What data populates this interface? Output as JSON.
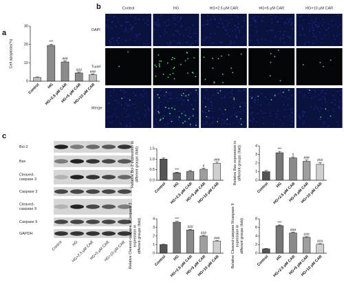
{
  "panel_labels": [
    "a",
    "b",
    "c"
  ],
  "images": {
    "columns": [
      "Control",
      "HG",
      "HG+2.5 μM CAR",
      "HG+5 μM CAR",
      "HG+10 μM CAR"
    ],
    "rows": [
      "DAPI",
      "Tunel",
      "Merge"
    ]
  },
  "blot": {
    "rows": [
      [
        "Bcl-2"
      ],
      [
        "Bax"
      ],
      [
        "Cleaved-",
        "caspase 3"
      ],
      [
        "Caspase 3"
      ],
      [
        "Cleaved-",
        "caspase 9"
      ],
      [
        "Caspase 9"
      ],
      [
        "GAPDH"
      ]
    ],
    "lanes": [
      "Control",
      "HG",
      "HG+2.5 μM CAR",
      "HG+5 μM CAR",
      "HG+10 μM CAR"
    ]
  },
  "chart_data": [
    {
      "type": "bar",
      "y_label": [
        "Cell apoptosis(%)"
      ],
      "categories": [
        "Control",
        "HG",
        "HG+2.5 μM CAR",
        "HG+5 μM CAR",
        "HG+10 μM CAR"
      ],
      "values": [
        2,
        19.5,
        10.5,
        4.5,
        3.5
      ],
      "errors": [
        0.3,
        0.6,
        0.5,
        0.4,
        0.4
      ],
      "annotations": [
        null,
        "***",
        "###",
        "###",
        "###"
      ],
      "colors": [
        "#bdbdbd",
        "#8a8a8a",
        "#8a8a8a",
        "#8a8a8a",
        "#bdbdbd"
      ],
      "ylim": [
        0,
        30
      ],
      "yticks": [
        0,
        10,
        20,
        30
      ]
    },
    {
      "type": "bar",
      "y_label": [
        "Relative Bcl-2 expression in",
        "different groups (fold)"
      ],
      "categories": [
        "Control",
        "HG",
        "HG+2.5 μM CAR",
        "HG+5 μM CAR",
        "HG+10 μM CAR"
      ],
      "values": [
        1.0,
        0.35,
        0.42,
        0.52,
        0.8
      ],
      "errors": [
        0.05,
        0.03,
        0.04,
        0.05,
        0.06
      ],
      "annotations": [
        null,
        "***",
        null,
        "#",
        "###"
      ],
      "colors": [
        "#555555",
        "#777777",
        "#8a8a8a",
        "#9e9e9e",
        "#cfcfcf"
      ],
      "ylim": [
        0,
        1.5
      ],
      "yticks": [
        {
          "value": 0,
          "label": "0.0"
        },
        0.5,
        {
          "value": 1,
          "label": "1.0"
        },
        1.5
      ]
    },
    {
      "type": "bar",
      "y_label": [
        "Relative Bax expression in",
        "different groups (fold)"
      ],
      "categories": [
        "Control",
        "HG",
        "HG+2.5 μM CAR",
        "HG+5 μM CAR",
        "HG+10 μM CAR"
      ],
      "values": [
        1.0,
        3.2,
        2.6,
        2.2,
        1.85
      ],
      "errors": [
        0.15,
        0.15,
        0.12,
        0.15,
        0.2
      ],
      "annotations": [
        null,
        "***",
        "#",
        "###",
        "###"
      ],
      "colors": [
        "#555555",
        "#777777",
        "#8a8a8a",
        "#9e9e9e",
        "#cfcfcf"
      ],
      "ylim": [
        0,
        4
      ],
      "yticks": [
        0,
        1,
        2,
        3,
        4
      ]
    },
    {
      "type": "bar",
      "y_label": [
        "Relative Cleaved-caspase 3/Caspase 3",
        "expression in",
        "different groups (fold)"
      ],
      "categories": [
        "Control",
        "HG",
        "HG+2.5 μM CAR",
        "HG+5 μM CAR",
        "HG+10 μM CAR"
      ],
      "values": [
        1.0,
        3.6,
        2.7,
        2.0,
        1.4
      ],
      "errors": [
        0.05,
        0.1,
        0.08,
        0.08,
        0.08
      ],
      "annotations": [
        null,
        "***",
        "###",
        "###",
        "###"
      ],
      "colors": [
        "#555555",
        "#777777",
        "#8a8a8a",
        "#9e9e9e",
        "#cfcfcf"
      ],
      "ylim": [
        0,
        4
      ],
      "yticks": [
        0,
        1,
        2,
        3,
        4
      ]
    },
    {
      "type": "bar",
      "y_label": [
        "Relative Cleaved-caspase 9/caspase 9",
        "expression in",
        "different groups (fold)"
      ],
      "categories": [
        "Control",
        "HG",
        "HG+2.5 μM CAR",
        "HG+5 μM CAR",
        "HG+10 μM CAR"
      ],
      "values": [
        1.0,
        6.4,
        4.7,
        3.7,
        2.1
      ],
      "errors": [
        0.1,
        0.15,
        0.15,
        0.12,
        0.12
      ],
      "annotations": [
        null,
        "***",
        "###",
        "###",
        "###"
      ],
      "colors": [
        "#555555",
        "#777777",
        "#8a8a8a",
        "#9e9e9e",
        "#cfcfcf"
      ],
      "ylim": [
        0,
        8
      ],
      "yticks": [
        0,
        2,
        4,
        6,
        8
      ]
    }
  ]
}
